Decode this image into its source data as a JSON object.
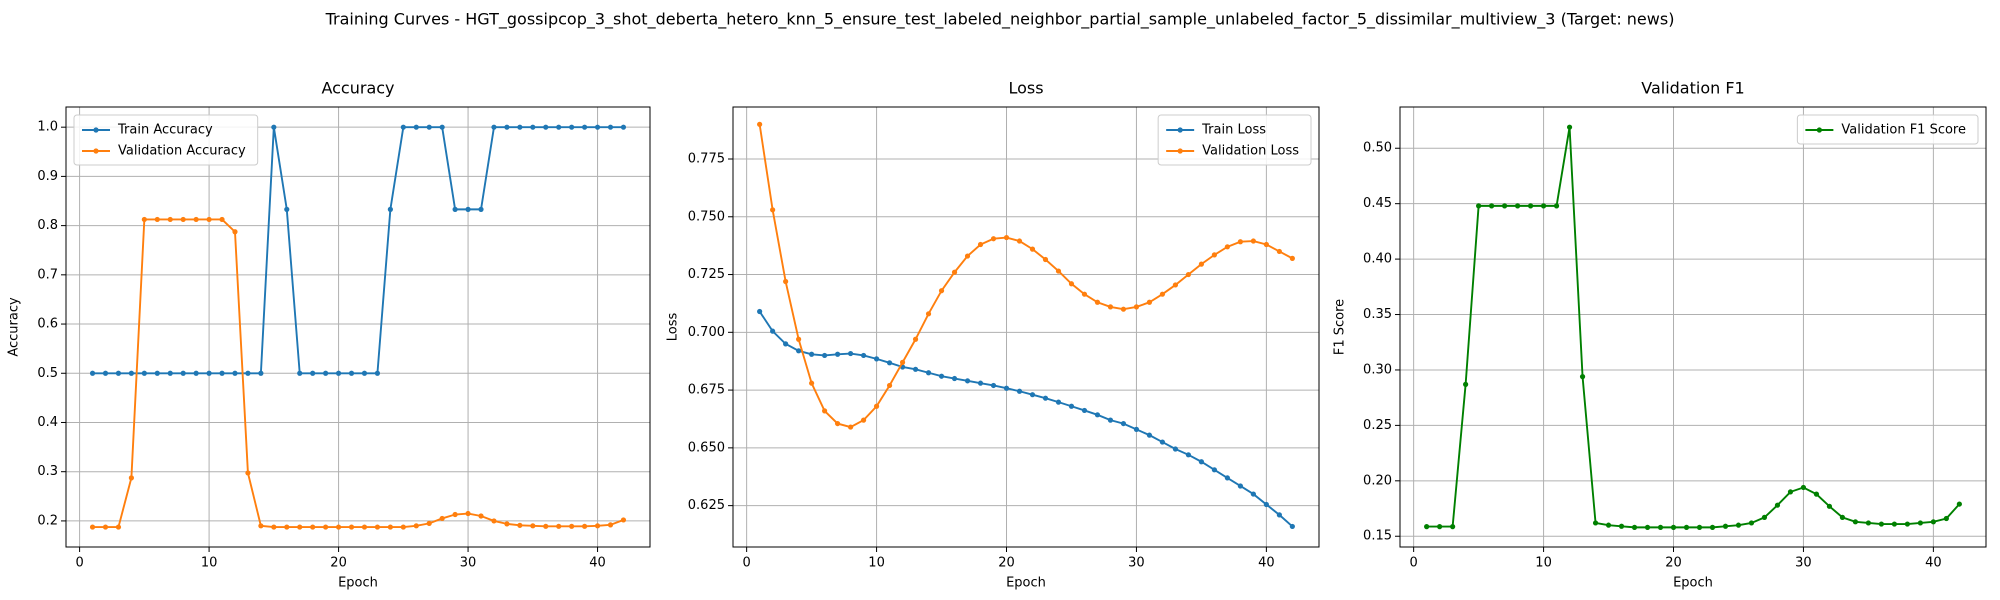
{
  "title": "Training Curves - HGT_gossipcop_3_shot_deberta_hetero_knn_5_ensure_test_labeled_neighbor_partial_sample_unlabeled_factor_5_dissimilar_multiview_3 (Target: news)",
  "chart_data": [
    {
      "type": "line",
      "title": "Accuracy",
      "x_label": "Epoch",
      "y_label": "Accuracy",
      "x": [
        1,
        2,
        3,
        4,
        5,
        6,
        7,
        8,
        9,
        10,
        11,
        12,
        13,
        14,
        15,
        16,
        17,
        18,
        19,
        20,
        21,
        22,
        23,
        24,
        25,
        26,
        27,
        28,
        29,
        30,
        31,
        32,
        33,
        34,
        35,
        36,
        37,
        38,
        39,
        40,
        41,
        42
      ],
      "xlim": [
        -1.05,
        44.05
      ],
      "xticks": [
        0,
        10,
        20,
        30,
        40
      ],
      "ylim": [
        0.147,
        1.041
      ],
      "yticks": [
        0.2,
        0.3,
        0.4,
        0.5,
        0.6,
        0.7,
        0.8,
        0.9,
        {
          "value": 1,
          "label": "1.0"
        }
      ],
      "grid": true,
      "legend": "upper left",
      "series": [
        {
          "name": "Train Accuracy",
          "color": "#1f77b4",
          "values": [
            0.5,
            0.5,
            0.5,
            0.5,
            0.5,
            0.5,
            0.5,
            0.5,
            0.5,
            0.5,
            0.5,
            0.5,
            0.5,
            0.5,
            1.0,
            0.833,
            0.5,
            0.5,
            0.5,
            0.5,
            0.5,
            0.5,
            0.5,
            0.833,
            1.0,
            1.0,
            1.0,
            1.0,
            0.833,
            0.833,
            0.833,
            1.0,
            1.0,
            1.0,
            1.0,
            1.0,
            1.0,
            1.0,
            1.0,
            1.0,
            1.0,
            1.0
          ]
        },
        {
          "name": "Validation Accuracy",
          "color": "#ff7f0e",
          "values": [
            0.1875,
            0.1875,
            0.1875,
            0.2875,
            0.8125,
            0.8125,
            0.8125,
            0.8125,
            0.8125,
            0.8125,
            0.8125,
            0.7875,
            0.2975,
            0.19,
            0.1875,
            0.1875,
            0.1875,
            0.1875,
            0.1875,
            0.1875,
            0.1875,
            0.1875,
            0.1875,
            0.1875,
            0.1875,
            0.19,
            0.195,
            0.205,
            0.213,
            0.215,
            0.21,
            0.2,
            0.194,
            0.191,
            0.19,
            0.189,
            0.189,
            0.189,
            0.189,
            0.19,
            0.192,
            0.202
          ]
        }
      ]
    },
    {
      "type": "line",
      "title": "Loss",
      "x_label": "Epoch",
      "y_label": "Loss",
      "x": [
        1,
        2,
        3,
        4,
        5,
        6,
        7,
        8,
        9,
        10,
        11,
        12,
        13,
        14,
        15,
        16,
        17,
        18,
        19,
        20,
        21,
        22,
        23,
        24,
        25,
        26,
        27,
        28,
        29,
        30,
        31,
        32,
        33,
        34,
        35,
        36,
        37,
        38,
        39,
        40,
        41,
        42
      ],
      "xlim": [
        -1.05,
        44.05
      ],
      "xticks": [
        0,
        10,
        20,
        30,
        40
      ],
      "ylim": [
        0.6071,
        0.7975
      ],
      "yticks": [
        0.625,
        {
          "value": 0.65,
          "label": "0.650"
        },
        0.675,
        {
          "value": 0.7,
          "label": "0.700"
        },
        0.725,
        {
          "value": 0.75,
          "label": "0.750"
        },
        0.775
      ],
      "grid": true,
      "legend": "upper right",
      "series": [
        {
          "name": "Train Loss",
          "color": "#1f77b4",
          "values": [
            0.709,
            0.7005,
            0.695,
            0.692,
            0.6905,
            0.69,
            0.6905,
            0.6908,
            0.69,
            0.6885,
            0.6868,
            0.685,
            0.684,
            0.6825,
            0.681,
            0.68,
            0.679,
            0.678,
            0.677,
            0.6758,
            0.6745,
            0.673,
            0.6715,
            0.6698,
            0.668,
            0.6662,
            0.6643,
            0.662,
            0.6605,
            0.658,
            0.6555,
            0.6525,
            0.6495,
            0.647,
            0.644,
            0.6405,
            0.637,
            0.6335,
            0.63,
            0.6255,
            0.621,
            0.616
          ]
        },
        {
          "name": "Validation Loss",
          "color": "#ff7f0e",
          "values": [
            0.79,
            0.753,
            0.722,
            0.697,
            0.678,
            0.666,
            0.6605,
            0.659,
            0.662,
            0.668,
            0.677,
            0.687,
            0.697,
            0.708,
            0.718,
            0.726,
            0.733,
            0.738,
            0.7405,
            0.741,
            0.7395,
            0.736,
            0.7315,
            0.7265,
            0.721,
            0.7165,
            0.713,
            0.711,
            0.71,
            0.711,
            0.713,
            0.7165,
            0.7205,
            0.725,
            0.7295,
            0.7335,
            0.737,
            0.7392,
            0.7395,
            0.738,
            0.735,
            0.732
          ]
        }
      ]
    },
    {
      "type": "line",
      "title": "Validation F1",
      "x_label": "Epoch",
      "y_label": "F1 Score",
      "x": [
        1,
        2,
        3,
        4,
        5,
        6,
        7,
        8,
        9,
        10,
        11,
        12,
        13,
        14,
        15,
        16,
        17,
        18,
        19,
        20,
        21,
        22,
        23,
        24,
        25,
        26,
        27,
        28,
        29,
        30,
        31,
        32,
        33,
        34,
        35,
        36,
        37,
        38,
        39,
        40,
        41,
        42
      ],
      "xlim": [
        -1.05,
        44.05
      ],
      "xticks": [
        0,
        10,
        20,
        30,
        40
      ],
      "ylim": [
        0.1403,
        0.5372
      ],
      "yticks": [
        0.15,
        {
          "value": 0.2,
          "label": "0.20"
        },
        0.25,
        {
          "value": 0.3,
          "label": "0.30"
        },
        0.35,
        {
          "value": 0.4,
          "label": "0.40"
        },
        0.45,
        {
          "value": 0.5,
          "label": "0.50"
        }
      ],
      "grid": true,
      "legend": "upper right",
      "series": [
        {
          "name": "Validation F1 Score",
          "color": "#008000",
          "values": [
            0.1587,
            0.1587,
            0.1587,
            0.287,
            0.448,
            0.448,
            0.448,
            0.448,
            0.448,
            0.448,
            0.448,
            0.519,
            0.294,
            0.162,
            0.16,
            0.159,
            0.158,
            0.158,
            0.158,
            0.158,
            0.158,
            0.158,
            0.158,
            0.159,
            0.16,
            0.162,
            0.167,
            0.178,
            0.19,
            0.194,
            0.188,
            0.177,
            0.167,
            0.163,
            0.162,
            0.161,
            0.161,
            0.161,
            0.162,
            0.163,
            0.166,
            0.179
          ]
        }
      ]
    }
  ]
}
